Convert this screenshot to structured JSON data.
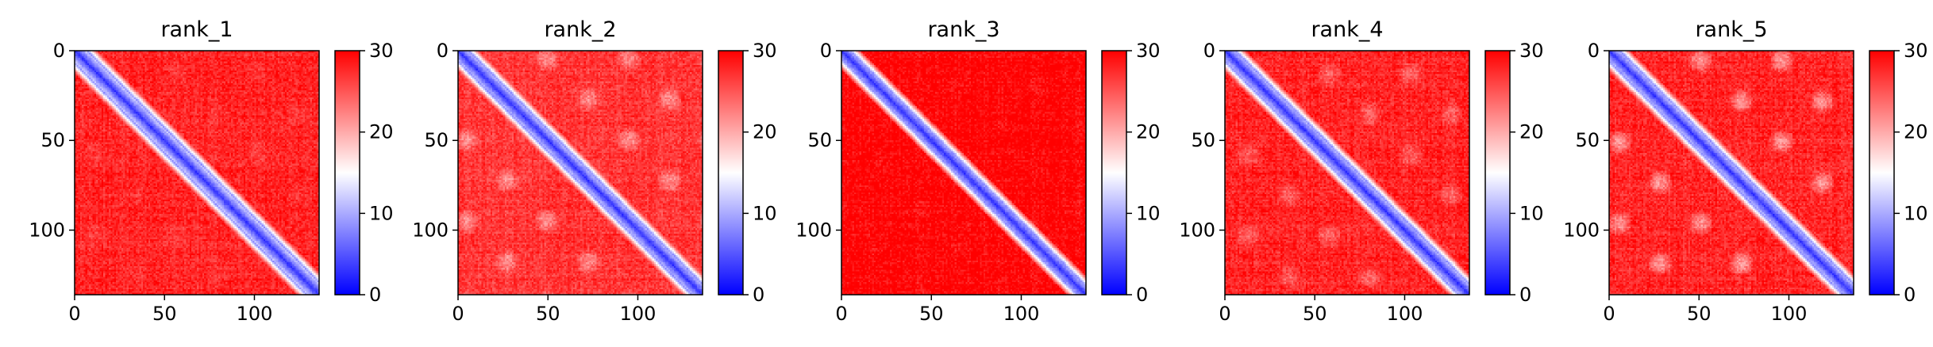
{
  "chart_data": {
    "type": "heatmap",
    "colormap": {
      "name": "bwr",
      "low": "#0000ff",
      "mid": "#ffffff",
      "high": "#ff0000"
    },
    "colorbar": {
      "vmin": 0,
      "vmax": 30,
      "ticks": [
        "0",
        "10",
        "20",
        "30"
      ]
    },
    "matrix_size": 136,
    "x_ticks": [
      "0",
      "50",
      "100"
    ],
    "y_ticks": [
      "0",
      "50",
      "100"
    ],
    "x_tick_values": [
      0,
      50,
      100
    ],
    "y_tick_values": [
      0,
      50,
      100
    ],
    "xlim": [
      0,
      136
    ],
    "ylim": [
      136,
      0
    ],
    "panels": [
      {
        "title": "rank_1",
        "diagonal_band_width": 7,
        "off_diagonal_level": 27,
        "blob_strength": 0.15
      },
      {
        "title": "rank_2",
        "diagonal_band_width": 6,
        "off_diagonal_level": 26,
        "blob_strength": 0.6
      },
      {
        "title": "rank_3",
        "diagonal_band_width": 5,
        "off_diagonal_level": 29,
        "blob_strength": 0.1
      },
      {
        "title": "rank_4",
        "diagonal_band_width": 6,
        "off_diagonal_level": 27,
        "blob_strength": 0.45
      },
      {
        "title": "rank_5",
        "diagonal_band_width": 6,
        "off_diagonal_level": 27,
        "blob_strength": 0.8
      }
    ]
  }
}
